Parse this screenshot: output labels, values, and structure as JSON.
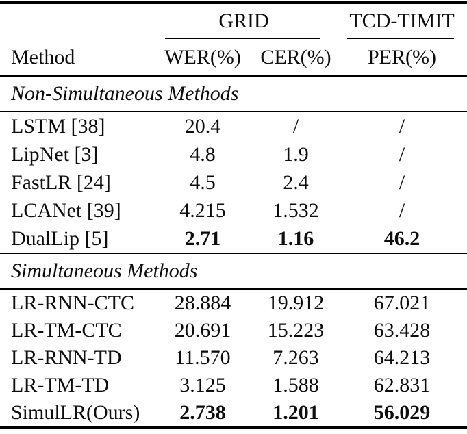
{
  "table": {
    "col_groups": [
      {
        "label": "GRID"
      },
      {
        "label": "TCD-TIMIT"
      }
    ],
    "headers": {
      "method": "Method",
      "wer": "WER(%)",
      "cer": "CER(%)",
      "per": "PER(%)"
    },
    "sections": [
      {
        "title": "Non-Simultaneous Methods",
        "rows": [
          {
            "method": "LSTM [38]",
            "wer": "20.4",
            "cer": "/",
            "per": "/",
            "bold": false
          },
          {
            "method": "LipNet [3]",
            "wer": "4.8",
            "cer": "1.9",
            "per": "/",
            "bold": false
          },
          {
            "method": "FastLR [24]",
            "wer": "4.5",
            "cer": "2.4",
            "per": "/",
            "bold": false
          },
          {
            "method": "LCANet [39]",
            "wer": "4.215",
            "cer": "1.532",
            "per": "/",
            "bold": false
          },
          {
            "method": "DualLip [5]",
            "wer": "2.71",
            "cer": "1.16",
            "per": "46.2",
            "bold": true
          }
        ]
      },
      {
        "title": "Simultaneous Methods",
        "rows": [
          {
            "method": "LR-RNN-CTC",
            "wer": "28.884",
            "cer": "19.912",
            "per": "67.021",
            "bold": false
          },
          {
            "method": "LR-TM-CTC",
            "wer": "20.691",
            "cer": "15.223",
            "per": "63.428",
            "bold": false
          },
          {
            "method": "LR-RNN-TD",
            "wer": "11.570",
            "cer": "7.263",
            "per": "64.213",
            "bold": false
          },
          {
            "method": "LR-TM-TD",
            "wer": "3.125",
            "cer": "1.588",
            "per": "62.831",
            "bold": false
          },
          {
            "method": "SimulLR(Ours)",
            "wer": "2.738",
            "cer": "1.201",
            "per": "56.029",
            "bold": true
          }
        ]
      }
    ],
    "colors": {
      "text": "#0d0d0d",
      "rule": "#000000",
      "background": "#ffffff"
    }
  }
}
